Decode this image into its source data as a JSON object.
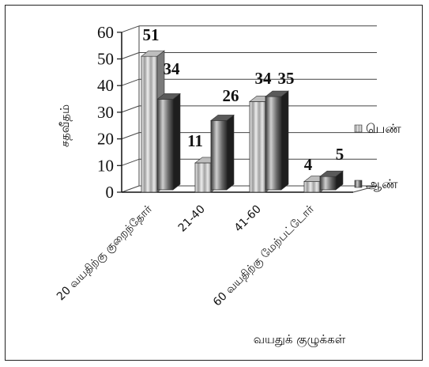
{
  "chart_data": {
    "type": "bar",
    "categories": [
      "20 வயதிற்கு குறைந்தோர்",
      "21-40",
      "41-60",
      "60 வயதிற்கு மேற்பட்டோர்"
    ],
    "series": [
      {
        "name": "பெண்",
        "values": [
          51,
          11,
          34,
          4
        ]
      },
      {
        "name": "ஆண்",
        "values": [
          34,
          26,
          35,
          5
        ]
      }
    ],
    "xlabel": "வயதுக் குழுக்கள்",
    "ylabel": "சதவீதம்",
    "ylim": [
      0,
      60
    ],
    "yticks": [
      0,
      10,
      20,
      30,
      40,
      50,
      60
    ],
    "grid": true,
    "legend": "right",
    "colors": {
      "series0": "#bdbdbd",
      "series1": "#5a5a5a",
      "frame": "#222222"
    }
  }
}
